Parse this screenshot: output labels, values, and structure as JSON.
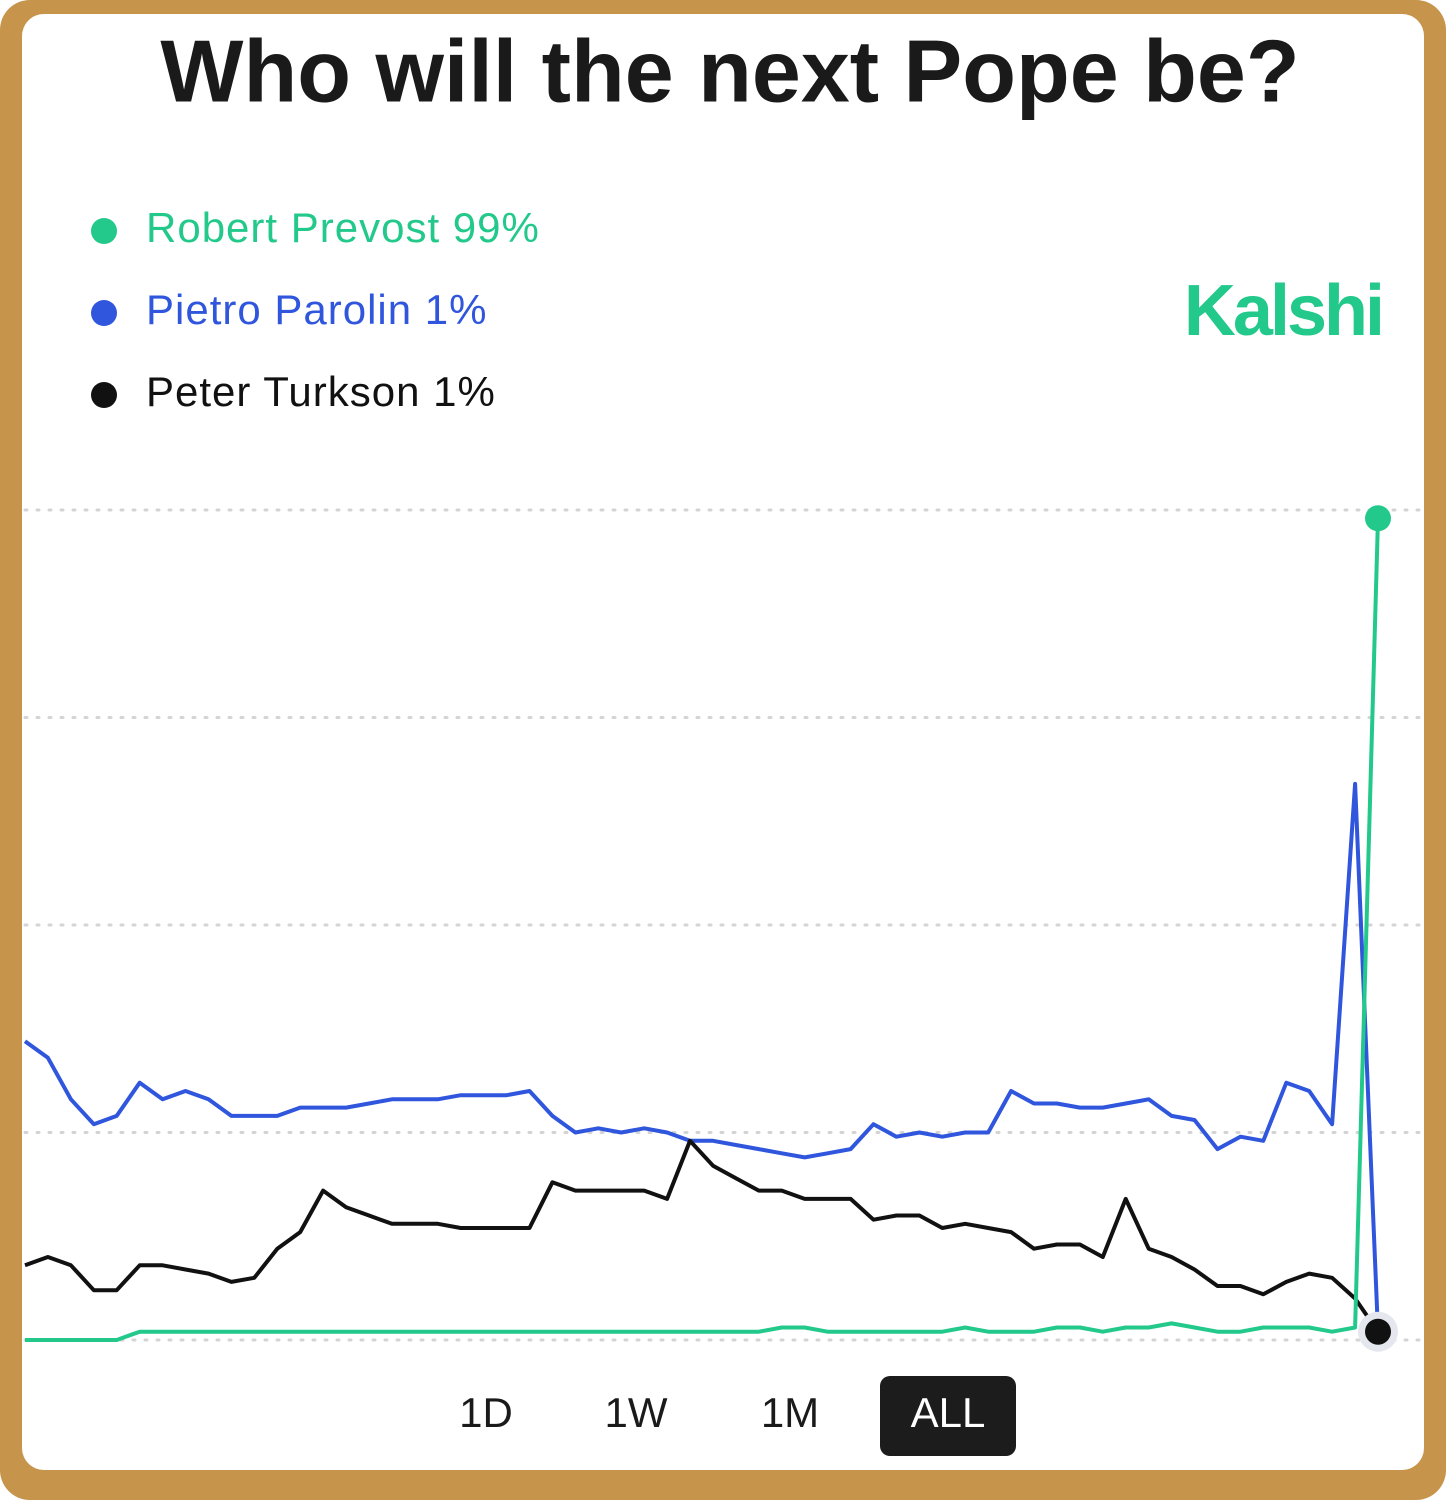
{
  "chart_data": {
    "type": "line",
    "title": "Who will the next Pope be?",
    "brand": "Kalshi",
    "ylim": [
      0,
      100
    ],
    "gridlines": [
      0,
      25,
      50,
      75,
      100
    ],
    "series": [
      {
        "name": "Robert Prevost",
        "current_label": "99%",
        "color": "#22c98b",
        "values": [
          0,
          0,
          0,
          0,
          0,
          1,
          1,
          1,
          1,
          1,
          1,
          1,
          1,
          1,
          1,
          1,
          1,
          1,
          1,
          1,
          1,
          1,
          1,
          1,
          1,
          1,
          1,
          1,
          1,
          1,
          1,
          1,
          1,
          1.5,
          1.5,
          1,
          1,
          1,
          1,
          1,
          1,
          1.5,
          1,
          1,
          1,
          1.5,
          1.5,
          1,
          1.5,
          1.5,
          2,
          1.5,
          1,
          1,
          1.5,
          1.5,
          1.5,
          1,
          1.5,
          99
        ]
      },
      {
        "name": "Pietro Parolin",
        "current_label": "1%",
        "color": "#2f56dc",
        "values": [
          36,
          34,
          29,
          26,
          27,
          31,
          29,
          30,
          29,
          27,
          27,
          27,
          28,
          28,
          28,
          28.5,
          29,
          29,
          29,
          29.5,
          29.5,
          29.5,
          30,
          27,
          25,
          25.5,
          25,
          25.5,
          25,
          24,
          24,
          23.5,
          23,
          22.5,
          22,
          22.5,
          23,
          26,
          24.5,
          25,
          24.5,
          25,
          25,
          30,
          28.5,
          28.5,
          28,
          28,
          28.5,
          29,
          27,
          26.5,
          23,
          24.5,
          24,
          31,
          30,
          26,
          67,
          1
        ]
      },
      {
        "name": "Peter Turkson",
        "current_label": "1%",
        "color": "#111111",
        "values": [
          9,
          10,
          9,
          6,
          6,
          9,
          9,
          8.5,
          8,
          7,
          7.5,
          11,
          13,
          18,
          16,
          15,
          14,
          14,
          14,
          13.5,
          13.5,
          13.5,
          13.5,
          19,
          18,
          18,
          18,
          18,
          17,
          24,
          21,
          19.5,
          18,
          18,
          17,
          17,
          17,
          14.5,
          15,
          15,
          13.5,
          14,
          13.5,
          13,
          11,
          11.5,
          11.5,
          10,
          17,
          11,
          10,
          8.5,
          6.5,
          6.5,
          5.5,
          7,
          8,
          7.5,
          5,
          1
        ]
      }
    ],
    "range_buttons": [
      "1D",
      "1W",
      "1M",
      "ALL"
    ],
    "active_range": 3
  }
}
